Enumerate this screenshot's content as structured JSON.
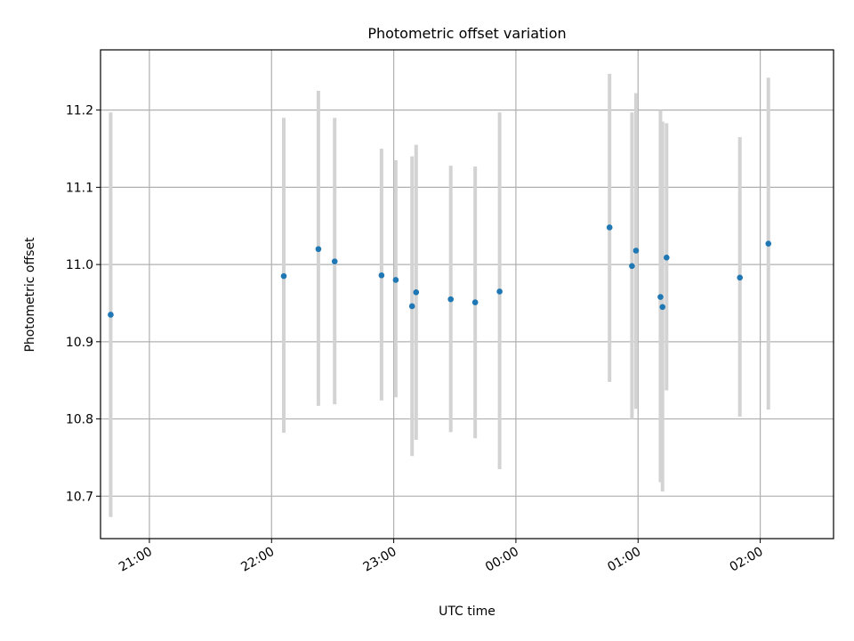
{
  "chart_data": {
    "type": "scatter",
    "title": "Photometric offset variation",
    "xlabel": "UTC time",
    "ylabel": "Photometric offset",
    "x_ticks": [
      "21:00",
      "22:00",
      "23:00",
      "00:00",
      "01:00",
      "02:00"
    ],
    "y_ticks": [
      "10.7",
      "10.8",
      "10.9",
      "11.0",
      "11.1",
      "11.2"
    ],
    "x_tick_minutes": [
      1260,
      1320,
      1380,
      1440,
      1500,
      1560
    ],
    "y_tick_values": [
      10.7,
      10.8,
      10.9,
      11.0,
      11.1,
      11.2
    ],
    "xlim": [
      "20:36",
      "02:36"
    ],
    "ylim": [
      10.645,
      11.278
    ],
    "grid": true,
    "point_color": "#1f77b4",
    "errorbar_color": "#d3d3d3",
    "points": [
      {
        "x": "20:41",
        "y": 10.935,
        "lo": 10.673,
        "hi": 11.197
      },
      {
        "x": "22:06",
        "y": 10.985,
        "lo": 10.782,
        "hi": 11.19
      },
      {
        "x": "22:23",
        "y": 11.02,
        "lo": 10.817,
        "hi": 11.225
      },
      {
        "x": "22:31",
        "y": 11.004,
        "lo": 10.819,
        "hi": 11.19
      },
      {
        "x": "22:54",
        "y": 10.986,
        "lo": 10.824,
        "hi": 11.15
      },
      {
        "x": "23:01",
        "y": 10.98,
        "lo": 10.828,
        "hi": 11.135
      },
      {
        "x": "23:09",
        "y": 10.946,
        "lo": 10.752,
        "hi": 11.14
      },
      {
        "x": "23:11",
        "y": 10.964,
        "lo": 10.773,
        "hi": 11.155
      },
      {
        "x": "23:28",
        "y": 10.955,
        "lo": 10.783,
        "hi": 11.128
      },
      {
        "x": "23:40",
        "y": 10.951,
        "lo": 10.775,
        "hi": 11.127
      },
      {
        "x": "23:52",
        "y": 10.965,
        "lo": 10.735,
        "hi": 11.197
      },
      {
        "x": "00:46",
        "y": 11.048,
        "lo": 10.848,
        "hi": 11.247
      },
      {
        "x": "00:57",
        "y": 10.998,
        "lo": 10.8,
        "hi": 11.197
      },
      {
        "x": "00:59",
        "y": 11.018,
        "lo": 10.813,
        "hi": 11.222
      },
      {
        "x": "01:11",
        "y": 10.958,
        "lo": 10.718,
        "hi": 11.2
      },
      {
        "x": "01:12",
        "y": 10.945,
        "lo": 10.706,
        "hi": 11.185
      },
      {
        "x": "01:14",
        "y": 11.009,
        "lo": 10.837,
        "hi": 11.183
      },
      {
        "x": "01:50",
        "y": 10.983,
        "lo": 10.803,
        "hi": 11.165
      },
      {
        "x": "02:04",
        "y": 11.027,
        "lo": 10.812,
        "hi": 11.242
      }
    ]
  }
}
